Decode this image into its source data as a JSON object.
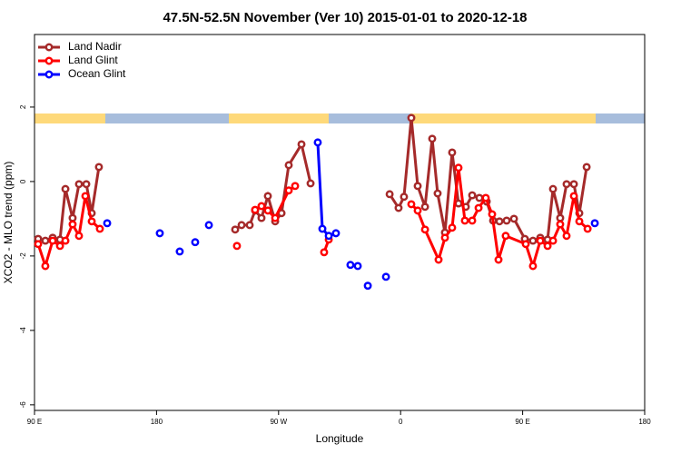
{
  "chart_data": {
    "type": "line",
    "title": "47.5N-52.5N November (Ver 10)   2015-01-01 to 2020-12-18",
    "x_label": "Longitude",
    "y_label": "XCO2 - MLO trend (ppm)",
    "xlim": [
      90,
      540
    ],
    "ylim": [
      -6.15,
      3.95
    ],
    "xticks": [
      {
        "value": 90,
        "label": "90 E"
      },
      180,
      {
        "value": 270,
        "label": "90 W"
      },
      {
        "value": 360,
        "label": "0"
      },
      {
        "value": 450,
        "label": "90 E"
      },
      {
        "value": 540,
        "label": "180"
      }
    ],
    "yticks": [
      2,
      0,
      -2,
      -4,
      -6
    ],
    "legend": "top-left",
    "series": [
      {
        "name": "Land Nadir",
        "color": "#a52a2a",
        "x": [
          92.7,
          98.0,
          103.4,
          108.8,
          112.8,
          118.1,
          122.8,
          128.2,
          132.2,
          137.5,
          null,
          238.0,
          242.7,
          248.7,
          252.7,
          257.4,
          262.1,
          267.5,
          272.2,
          277.5,
          286.9,
          293.6,
          null,
          351.9,
          358.5,
          362.5,
          367.9,
          372.6,
          378.0,
          383.3,
          387.3,
          392.7,
          398.0,
          402.7,
          408.1,
          412.8,
          418.1,
          423.5,
          428.2,
          432.9,
          438.2,
          443.6,
          451.6,
          457.6,
          463.0,
          468.4,
          472.4,
          477.7,
          482.4,
          487.8,
          491.8,
          497.2
        ],
        "values": [
          -1.54,
          -1.59,
          -1.51,
          -1.56,
          -0.2,
          -0.98,
          -0.07,
          -0.07,
          -0.85,
          0.39,
          null,
          -1.29,
          -1.17,
          -1.17,
          -0.78,
          -0.98,
          -0.39,
          -1.07,
          -0.85,
          0.44,
          1.0,
          -0.05,
          null,
          -0.34,
          -0.71,
          -0.41,
          1.71,
          -0.12,
          -0.68,
          1.15,
          -0.32,
          -1.37,
          0.78,
          -0.59,
          -0.68,
          -0.37,
          -0.44,
          -0.54,
          -1.05,
          -1.07,
          -1.05,
          -1.0,
          -1.54,
          -1.59,
          -1.51,
          -1.56,
          -0.2,
          -0.98,
          -0.07,
          -0.07,
          -0.85,
          0.39
        ]
      },
      {
        "name": "Land Glint",
        "color": "#ff0000",
        "x": [
          92.7,
          98.0,
          103.4,
          108.8,
          112.8,
          118.1,
          122.8,
          127.5,
          132.2,
          138.2,
          null,
          239.3,
          null,
          252.7,
          257.4,
          262.1,
          267.5,
          277.5,
          282.2,
          null,
          303.6,
          307.0,
          null,
          367.9,
          372.6,
          378.0,
          388.0,
          392.7,
          398.0,
          402.7,
          407.4,
          412.8,
          417.5,
          422.8,
          427.5,
          432.2,
          437.5,
          452.3,
          457.6,
          463.0,
          468.4,
          472.4,
          477.7,
          482.4,
          487.8,
          491.8,
          497.9
        ],
        "values": [
          -1.68,
          -2.27,
          -1.59,
          -1.73,
          -1.59,
          -1.15,
          -1.46,
          -0.39,
          -1.07,
          -1.27,
          null,
          -1.73,
          null,
          -0.76,
          -0.66,
          -0.78,
          -0.98,
          -0.24,
          -0.12,
          null,
          -1.9,
          -1.56,
          null,
          -0.61,
          -0.78,
          -1.29,
          -2.1,
          -1.51,
          -1.24,
          0.37,
          -1.05,
          -1.05,
          -0.71,
          -0.44,
          -0.88,
          -2.1,
          -1.46,
          -1.68,
          -2.27,
          -1.59,
          -1.73,
          -1.59,
          -1.15,
          -1.46,
          -0.39,
          -1.07,
          -1.27
        ]
      },
      {
        "name": "Ocean Glint",
        "color": "#0000ff",
        "x": [
          143.6,
          null,
          182.4,
          null,
          197.1,
          null,
          208.5,
          null,
          218.6,
          null,
          298.9,
          302.3,
          307.0,
          312.3,
          null,
          323.0,
          null,
          328.4,
          null,
          335.8,
          null,
          349.2,
          null,
          503.2
        ],
        "values": [
          -1.12,
          null,
          -1.39,
          null,
          -1.88,
          null,
          -1.63,
          null,
          -1.17,
          null,
          1.05,
          -1.27,
          -1.46,
          -1.39,
          null,
          -2.24,
          null,
          -2.27,
          null,
          -2.8,
          null,
          -2.56,
          null,
          -1.12
        ]
      }
    ]
  }
}
